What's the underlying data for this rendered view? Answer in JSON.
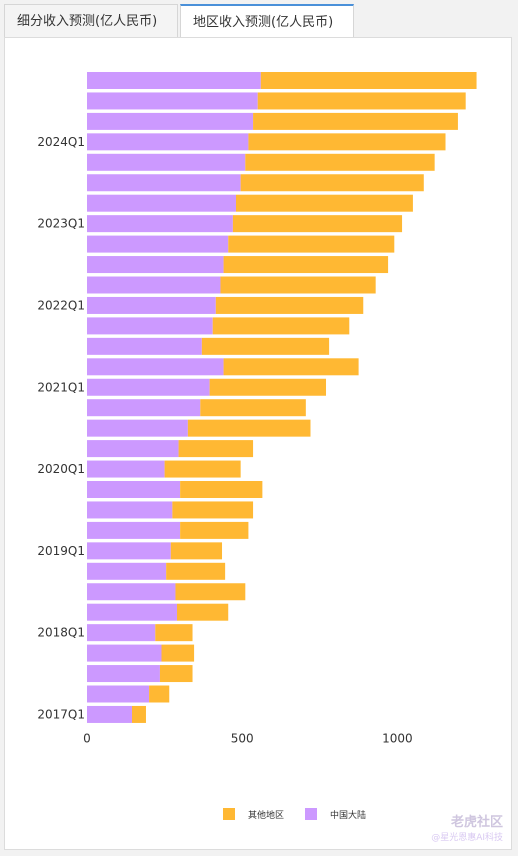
{
  "tabs": [
    {
      "label": "细分收入预测(亿人民币)"
    },
    {
      "label": "地区收入预测(亿人民币)"
    }
  ],
  "colors": {
    "mainland": "#cc99ff",
    "other": "#ffb833"
  },
  "watermark": {
    "main": "老虎社区",
    "sub": "@星光恩惠AI科技"
  },
  "chart_data": {
    "type": "bar",
    "orientation": "horizontal",
    "stacked": true,
    "xlim": [
      0,
      1250
    ],
    "xticks": [
      0,
      500,
      1000
    ],
    "categories": [
      "",
      "",
      "",
      "2024Q1",
      "",
      "",
      "",
      "2023Q1",
      "",
      "",
      "",
      "2022Q1",
      "",
      "",
      "",
      "2021Q1",
      "",
      "",
      "",
      "2020Q1",
      "",
      "",
      "",
      "2019Q1",
      "",
      "",
      "",
      "2018Q1",
      "",
      "",
      "",
      "2017Q1"
    ],
    "series": [
      {
        "name": "中国大陆",
        "color": "#cc99ff",
        "values": [
          560,
          550,
          535,
          520,
          510,
          495,
          480,
          470,
          455,
          440,
          430,
          415,
          405,
          370,
          440,
          395,
          365,
          325,
          295,
          250,
          300,
          275,
          300,
          270,
          255,
          285,
          290,
          220,
          240,
          235,
          200,
          145
        ]
      },
      {
        "name": "其他地区",
        "color": "#ffb833",
        "values": [
          695,
          670,
          660,
          635,
          610,
          590,
          570,
          545,
          535,
          530,
          500,
          475,
          440,
          410,
          435,
          375,
          340,
          395,
          240,
          245,
          265,
          260,
          220,
          165,
          190,
          225,
          165,
          120,
          105,
          105,
          65,
          45
        ]
      }
    ],
    "legend": [
      "其他地区",
      "中国大陆"
    ],
    "legend_position": "bottom"
  }
}
